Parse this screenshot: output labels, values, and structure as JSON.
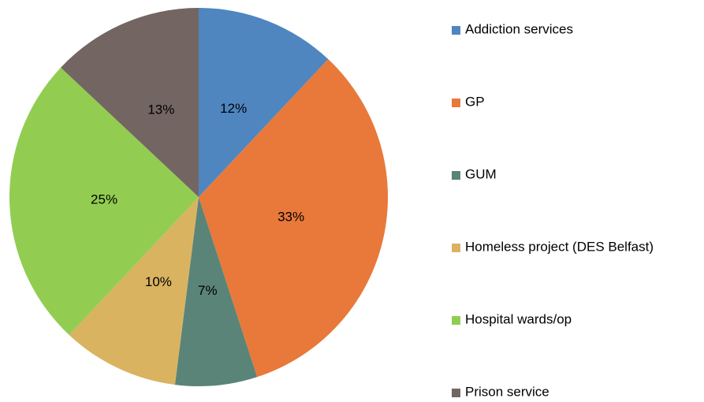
{
  "chart_data": {
    "type": "pie",
    "categories": [
      "Addiction services",
      "GP",
      "GUM",
      "Homeless project (DES Belfast)",
      "Hospital wards/op",
      "Prison service"
    ],
    "values": [
      12,
      33,
      7,
      10,
      25,
      13
    ],
    "value_labels": [
      "12%",
      "33%",
      "7%",
      "10%",
      "25%",
      "13%"
    ],
    "colors": [
      "#4f86c0",
      "#e8793a",
      "#5a8478",
      "#d9b360",
      "#92cd52",
      "#736662"
    ],
    "legend": "right"
  }
}
